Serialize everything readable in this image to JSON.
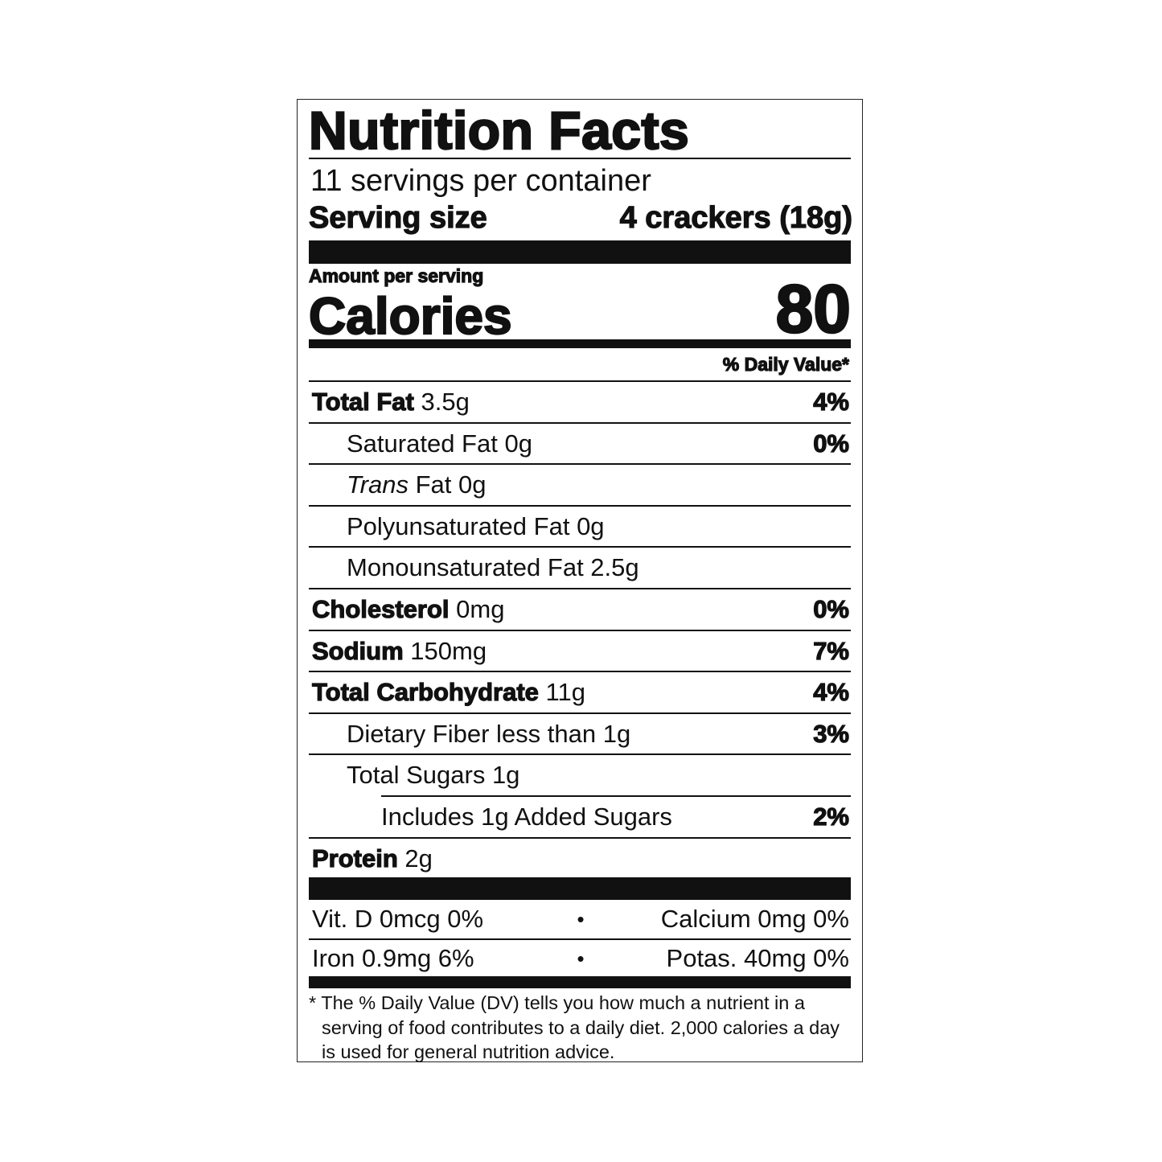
{
  "title": "Nutrition Facts",
  "servings_per_container": "11 servings per container",
  "serving_size_label": "Serving size",
  "serving_size_value": "4 crackers (18g)",
  "amount_per_serving": "Amount per serving",
  "calories_label": "Calories",
  "calories_value": "80",
  "daily_value_header": "% Daily Value*",
  "nutrients": [
    {
      "name": "Total Fat",
      "amount": "3.5g",
      "dv": "4%",
      "level": 0
    },
    {
      "name": "Saturated Fat",
      "amount": "0g",
      "dv": "0%",
      "level": 1
    },
    {
      "name": "Trans",
      "name_suffix": "Fat",
      "amount": "0g",
      "dv": "",
      "level": 1,
      "italic": true
    },
    {
      "name": "Polyunsaturated Fat",
      "amount": "0g",
      "dv": "",
      "level": 1
    },
    {
      "name": "Monounsaturated Fat",
      "amount": "2.5g",
      "dv": "",
      "level": 1
    },
    {
      "name": "Cholesterol",
      "amount": "0mg",
      "dv": "0%",
      "level": 0
    },
    {
      "name": "Sodium",
      "amount": "150mg",
      "dv": "7%",
      "level": 0
    },
    {
      "name": "Total Carbohydrate",
      "amount": "11g",
      "dv": "4%",
      "level": 0
    },
    {
      "name": "Dietary Fiber",
      "amount": "less than 1g",
      "dv": "3%",
      "level": 1
    },
    {
      "name": "Total Sugars",
      "amount": "1g",
      "dv": "",
      "level": 1
    },
    {
      "name": "Includes 1g Added Sugars",
      "amount": "",
      "dv": "2%",
      "level": 2
    },
    {
      "name": "Protein",
      "amount": "2g",
      "dv": "",
      "level": 0
    }
  ],
  "vitamins": [
    {
      "left": "Vit. D 0mcg 0%",
      "right": "Calcium 0mg 0%"
    },
    {
      "left": "Iron 0.9mg 6%",
      "right": "Potas. 40mg 0%"
    }
  ],
  "separator": "•",
  "footnote": "* The % Daily Value (DV) tells you how much a nutrient in a serving of food contributes to a daily diet. 2,000 calories a day is used for general nutrition advice."
}
